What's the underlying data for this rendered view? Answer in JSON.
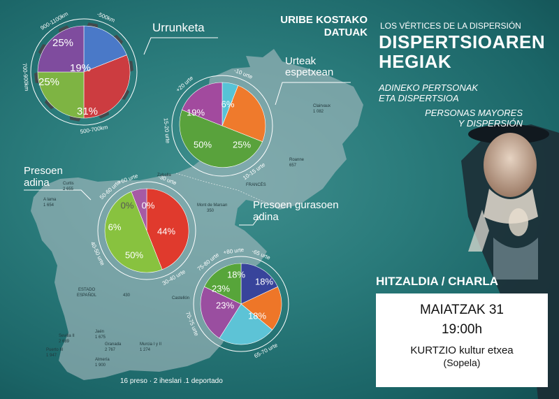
{
  "header": {
    "source_line1": "URIBE KOSTAKO",
    "source_line2": "DATUAK",
    "subtitle_es": "LOS VÉRTICES DE LA DISPERSIÓN",
    "title_line1": "DISPERTSIOAREN",
    "title_line2": "HEGIAK",
    "eu_line1": "ADINEKO PERTSONAK",
    "eu_line2": "ETA DISPERTSIOA",
    "es_line1": "PERSONAS MAYORES",
    "es_line2": "Y DISPERSIÓN"
  },
  "event": {
    "type_label": "HITZALDIA / CHARLA",
    "date": "MAIATZAK 31",
    "time": "19:00h",
    "venue": "KURTZIO kultur etxea",
    "town": "(Sopela)"
  },
  "footer": {
    "note": "16 preso · 2 iheslari .1 deportado"
  },
  "map_labels": {
    "clairvaux": "Clairvaux",
    "clairvaux_n": "1 082",
    "roanne": "Roanne",
    "roanne_n": "657",
    "zaballa": "Zaballa",
    "curtis": "Curtis",
    "curtis_n": "2 655",
    "a_lama": "A lama",
    "a_lama_n": "1 654",
    "mont_marsan": "Mont de Marsan",
    "mont_marsan_n": "350",
    "frances": "FRANCÉS",
    "estado": "ESTADO",
    "espanol": "ESPAÑOL",
    "n430": "430",
    "castellon": "Castellón",
    "sevilla": "Sevilla II",
    "sevilla_n": "2 689",
    "jaen": "Jaén",
    "jaen_n": "1 675",
    "granada": "Granada",
    "granada_n": "2 767",
    "murcia": "Murcia I y II",
    "murcia_n": "1 274",
    "puerto": "Puerto III",
    "puerto_n": "1 947",
    "almeria": "Almería",
    "almeria_n": "1 900"
  },
  "chart_data": [
    {
      "type": "pie",
      "title": "Urrunketa",
      "categories": [
        "-500km",
        "500-700km",
        "700-900km",
        "900-1100km"
      ],
      "values": [
        19,
        31,
        25,
        25
      ],
      "colors": [
        "#4a79c8",
        "#cc3c40",
        "#7eb443",
        "#7f4c9e"
      ]
    },
    {
      "type": "pie",
      "title": "Urteak espetxean",
      "categories": [
        "-10 urte",
        "10-15 urte",
        "15-20 urte",
        "+20 urte"
      ],
      "values": [
        6,
        25,
        50,
        19
      ],
      "colors": [
        "#57c3d6",
        "#ef7a2c",
        "#59a23c",
        "#a24a9e"
      ]
    },
    {
      "type": "pie",
      "title": "Presoen adina",
      "categories": [
        "-30 urte",
        "30-40 urte",
        "40-50 urte",
        "50-60 urte",
        "+60 urte"
      ],
      "values": [
        0,
        44,
        50,
        6,
        0
      ],
      "colors": [
        "#3a3f9b",
        "#e03a2d",
        "#88c23f",
        "#a65aa4",
        "#f0e52a"
      ]
    },
    {
      "type": "pie",
      "title": "Presoen gurasoen adina",
      "categories": [
        "-65 urte",
        "65-70 urte",
        "70-75 urte",
        "75-80 urte",
        "+80 urte"
      ],
      "values": [
        18,
        18,
        23,
        23,
        18
      ],
      "colors": [
        "#38449b",
        "#ee7628",
        "#5dc3d6",
        "#9a4ea0",
        "#57a53a"
      ]
    }
  ]
}
